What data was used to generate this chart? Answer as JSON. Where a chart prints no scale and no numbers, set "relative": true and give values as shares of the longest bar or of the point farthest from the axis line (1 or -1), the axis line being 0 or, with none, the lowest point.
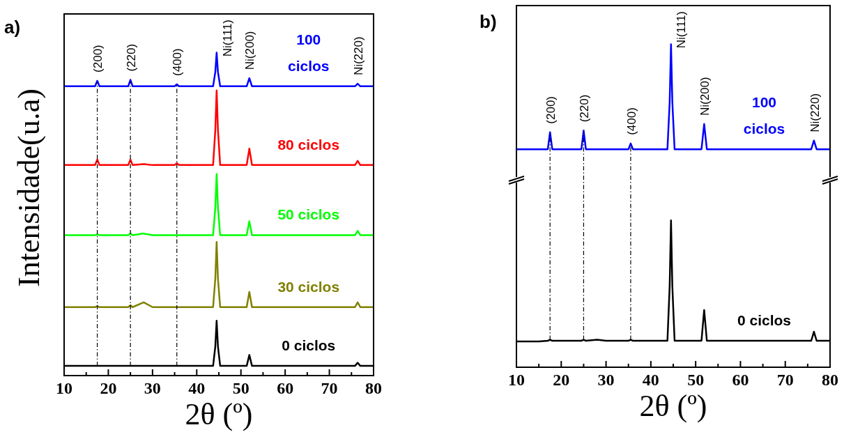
{
  "chart_data": [
    {
      "type": "line",
      "title": "a)",
      "xlabel": "2θ (º)",
      "ylabel": "Intensidade(u.a)",
      "relative": true,
      "xlim": [
        10,
        80
      ],
      "xticks": [
        10,
        {
          "value": 15,
          "label": null
        },
        20,
        {
          "value": 25,
          "label": null
        },
        30,
        {
          "value": 35,
          "label": null
        },
        40,
        {
          "value": 45,
          "label": null
        },
        50,
        {
          "value": 55,
          "label": null
        },
        60,
        {
          "value": 65,
          "label": null
        },
        70,
        {
          "value": 75,
          "label": null
        },
        80
      ],
      "x": [
        10,
        15,
        17,
        17.5,
        18,
        20,
        24.5,
        25,
        25.5,
        28,
        30,
        35,
        35.5,
        36,
        40,
        43.7,
        44.2,
        44.5,
        44.8,
        45.3,
        50,
        51.3,
        51.9,
        52.5,
        55,
        60,
        70,
        75.8,
        76.4,
        77,
        80
      ],
      "series": [
        {
          "name": "0 ciclos",
          "color": "#000000",
          "values": [
            0.03,
            0.03,
            0.03,
            0.03,
            0.03,
            0.03,
            0.03,
            0.03,
            0.03,
            0.03,
            0.03,
            0.03,
            0.03,
            0.03,
            0.03,
            0.03,
            0.09,
            0.17,
            0.09,
            0.03,
            0.03,
            0.03,
            0.064,
            0.03,
            0.03,
            0.03,
            0.03,
            0.03,
            0.04,
            0.03,
            0.03
          ]
        },
        {
          "name": "30 ciclos",
          "color": "#808000",
          "values": [
            0.212,
            0.212,
            0.212,
            0.215,
            0.212,
            0.212,
            0.212,
            0.218,
            0.212,
            0.227,
            0.212,
            0.212,
            0.212,
            0.212,
            0.212,
            0.212,
            0.3,
            0.414,
            0.3,
            0.212,
            0.212,
            0.212,
            0.259,
            0.212,
            0.212,
            0.212,
            0.212,
            0.212,
            0.227,
            0.212,
            0.212
          ]
        },
        {
          "name": "50 ciclos",
          "color": "#00ff00",
          "values": [
            0.435,
            0.435,
            0.435,
            0.437,
            0.435,
            0.435,
            0.435,
            0.44,
            0.435,
            0.44,
            0.435,
            0.435,
            0.435,
            0.435,
            0.435,
            0.435,
            0.52,
            0.624,
            0.52,
            0.435,
            0.435,
            0.435,
            0.478,
            0.435,
            0.435,
            0.435,
            0.435,
            0.435,
            0.448,
            0.435,
            0.435
          ]
        },
        {
          "name": "80 ciclos",
          "color": "#ff0000",
          "values": [
            0.652,
            0.652,
            0.652,
            0.669,
            0.652,
            0.652,
            0.652,
            0.669,
            0.652,
            0.655,
            0.652,
            0.652,
            0.658,
            0.652,
            0.652,
            0.652,
            0.76,
            0.883,
            0.76,
            0.652,
            0.652,
            0.652,
            0.703,
            0.652,
            0.652,
            0.652,
            0.652,
            0.652,
            0.665,
            0.652,
            0.652
          ]
        },
        {
          "name": "100 ciclos",
          "color": "#0000ff",
          "values": [
            0.896,
            0.896,
            0.896,
            0.913,
            0.896,
            0.896,
            0.896,
            0.916,
            0.896,
            0.896,
            0.896,
            0.896,
            0.902,
            0.896,
            0.896,
            0.896,
            0.94,
            1,
            0.94,
            0.896,
            0.896,
            0.896,
            0.921,
            0.896,
            0.896,
            0.896,
            0.896,
            0.896,
            0.904,
            0.896,
            0.896
          ]
        }
      ],
      "ref_lines": [
        {
          "axis": "x",
          "value": 17.5
        },
        {
          "axis": "x",
          "value": 25
        },
        {
          "axis": "x",
          "value": 35.5
        }
      ],
      "annotations": [
        {
          "text": "(200)",
          "x": 17.5,
          "y": 0.913
        },
        {
          "text": "(220)",
          "x": 25,
          "y": 0.916
        },
        {
          "text": "(400)",
          "x": 35.5,
          "y": 0.902
        },
        {
          "text": "Ni(111)",
          "x": 44.5,
          "y": 1
        },
        {
          "text": "Ni(200)",
          "x": 51.9,
          "y": 0.921
        },
        {
          "text": "Ni(220)",
          "x": 76.4,
          "y": 0.904
        }
      ]
    },
    {
      "type": "line",
      "title": "b)",
      "xlabel": "2θ (º)",
      "relative": true,
      "xlim": [
        10,
        80
      ],
      "xticks": [
        10,
        {
          "value": 15,
          "label": null
        },
        20,
        {
          "value": 25,
          "label": null
        },
        30,
        {
          "value": 35,
          "label": null
        },
        40,
        {
          "value": 45,
          "label": null
        },
        50,
        {
          "value": 55,
          "label": null
        },
        60,
        {
          "value": 65,
          "label": null
        },
        70,
        {
          "value": 75,
          "label": null
        },
        80
      ],
      "x": [
        10,
        15,
        17,
        17.5,
        18,
        20,
        24.5,
        25,
        25.5,
        28,
        30,
        35,
        35.5,
        36,
        40,
        43.7,
        44.2,
        44.5,
        44.8,
        45.3,
        50,
        51.3,
        51.9,
        52.5,
        55,
        60,
        70,
        75.8,
        76.4,
        77,
        80
      ],
      "series": [
        {
          "name": "0 ciclos",
          "color": "#000000",
          "values": [
            0.08,
            0.08,
            0.082,
            0.085,
            0.082,
            0.082,
            0.082,
            0.085,
            0.082,
            0.085,
            0.082,
            0.082,
            0.085,
            0.082,
            0.082,
            0.082,
            0.25,
            0.455,
            0.25,
            0.082,
            0.082,
            0.082,
            0.177,
            0.082,
            0.082,
            0.082,
            0.082,
            0.082,
            0.11,
            0.082,
            0.082
          ]
        },
        {
          "name": "100 ciclos",
          "color": "#0000ff",
          "values": [
            0.675,
            0.675,
            0.675,
            0.728,
            0.675,
            0.675,
            0.675,
            0.733,
            0.675,
            0.675,
            0.675,
            0.675,
            0.693,
            0.675,
            0.675,
            0.675,
            0.82,
            1,
            0.82,
            0.675,
            0.675,
            0.675,
            0.753,
            0.675,
            0.675,
            0.675,
            0.675,
            0.675,
            0.702,
            0.675,
            0.675
          ]
        }
      ],
      "ref_lines": [
        {
          "axis": "x",
          "value": 17.5
        },
        {
          "axis": "x",
          "value": 25
        },
        {
          "axis": "x",
          "value": 35.5
        }
      ],
      "annotations": [
        {
          "text": "(200)",
          "x": 17.5,
          "y": 0.728
        },
        {
          "text": "(220)",
          "x": 25,
          "y": 0.733
        },
        {
          "text": "(400)",
          "x": 35.5,
          "y": 0.693
        },
        {
          "text": "Ni(111)",
          "x": 44.5,
          "y": 1
        },
        {
          "text": "Ni(200)",
          "x": 51.9,
          "y": 0.753
        },
        {
          "text": "Ni(220)",
          "x": 76.4,
          "y": 0.702
        }
      ]
    }
  ]
}
